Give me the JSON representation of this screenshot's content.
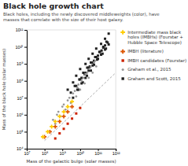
{
  "chart_data": {
    "type": "scatter",
    "title": "Black hole growth chart",
    "subtitle": "Black holes, including the newly discovered middleweights (color), have\nmasses that correlate with the size of their host galaxy.",
    "x_label": "Mass of the galactic bulge (solar masses)",
    "y_label": "Mass of the black hole (solar masses)",
    "log": true,
    "grid": false,
    "legend": "right",
    "xlim": [
      10000000,
      1000000000000
    ],
    "xticks": [
      {
        "value": 10000000,
        "label": "10⁷"
      },
      {
        "value": 100000000,
        "label": "10⁸"
      },
      {
        "value": 1000000000,
        "label": "10⁹"
      },
      {
        "value": 10000000000,
        "label": "10¹⁰"
      },
      {
        "value": 100000000000,
        "label": "10¹¹"
      },
      {
        "value": 1000000000000,
        "label": "10¹²"
      }
    ],
    "ylim": [
      10000,
      100000000000
    ],
    "yticks": [
      {
        "value": 10000,
        "label": "10⁴"
      },
      {
        "value": 100000,
        "label": "10⁵"
      },
      {
        "value": 1000000,
        "label": "10⁶"
      },
      {
        "value": 10000000,
        "label": "10⁷"
      },
      {
        "value": 100000000,
        "label": "10⁸"
      },
      {
        "value": 1000000000,
        "label": "10⁹"
      },
      {
        "value": 10000000000,
        "label": "10¹⁰"
      },
      {
        "value": 100000000000,
        "label": "10¹¹"
      }
    ],
    "series": [
      {
        "name": "Intermediate mass black\nholes (IMBHs) (Fourstar +\nHubble Space Telescope)",
        "color": "#ffcc00",
        "marker": "plus",
        "x": [
          80000000.0,
          150000000.0,
          250000000.0,
          400000000.0,
          700000000.0,
          1200000000.0,
          2000000000.0,
          3500000000.0
        ],
        "values": [
          50000.0,
          100000.0,
          200000.0,
          400000.0,
          800000.0,
          1500000.0,
          3000000.0,
          6000000.0
        ]
      },
      {
        "name": "IMBH (literature)",
        "color": "#dd5500",
        "marker": "plus",
        "x": [
          100000000.0,
          200000000.0,
          400000000.0,
          700000000.0,
          1200000000.0,
          2000000000.0,
          3500000000.0
        ],
        "values": [
          50000.0,
          100000.0,
          200000.0,
          400000.0,
          800000.0,
          1500000.0,
          3000000.0
        ]
      },
      {
        "name": "IMBH candidates (Fourstar)",
        "color": "#cc2200",
        "marker": "square",
        "x": [
          400000000.0,
          700000000.0,
          1200000000.0,
          2000000000.0,
          3500000000.0,
          6000000000.0,
          10000000000.0
        ],
        "values": [
          40000.0,
          80000.0,
          150000.0,
          300000.0,
          600000.0,
          1200000.0,
          2500000.0
        ]
      },
      {
        "name": "Graham et al., 2015",
        "color": "#999999",
        "marker": "point",
        "x": [
          300000000.0,
          600000000.0,
          1200000000.0,
          2500000000.0,
          5000000000.0,
          8000000000.0,
          15000000000.0,
          25000000000.0,
          40000000000.0,
          70000000000.0,
          400000000.0,
          800000000.0,
          1500000000.0,
          3000000000.0,
          6000000000.0,
          10000000000.0,
          18000000000.0,
          30000000000.0,
          50000000000.0,
          80000000000.0,
          500000000.0,
          1000000000.0,
          2000000000.0,
          4000000000.0,
          7000000000.0,
          12000000000.0,
          20000000000.0,
          35000000000.0,
          60000000000.0
        ],
        "values": [
          500000.0,
          1500000.0,
          4000000.0,
          10000000.0,
          25000000.0,
          60000000.0,
          150000000.0,
          300000000.0,
          700000000.0,
          1500000000.0,
          300000.0,
          800000.0,
          2000000.0,
          5000000.0,
          12000000.0,
          30000000.0,
          70000000.0,
          150000000.0,
          300000000.0,
          700000000.0,
          1000000.0,
          3000000.0,
          7000000.0,
          18000000.0,
          40000000.0,
          100000000.0,
          250000000.0,
          500000000.0,
          1200000000.0
        ]
      },
      {
        "name": "Graham and Scott, 2015",
        "color": "#222222",
        "marker": "square",
        "x": [
          2000000000.0,
          4000000000.0,
          6000000000.0,
          10000000000.0,
          20000000000.0,
          30000000000.0,
          50000000000.0,
          80000000000.0,
          150000000000.0,
          250000000000.0,
          400000000000.0,
          3000000000.0,
          5000000000.0,
          9000000000.0,
          15000000000.0,
          25000000000.0,
          40000000000.0,
          70000000000.0,
          120000000000.0,
          200000000000.0,
          350000000000.0,
          4000000000.0,
          7000000000.0,
          12000000000.0,
          20000000000.0,
          30000000000.0,
          50000000000.0,
          90000000000.0,
          150000000000.0,
          250000000000.0,
          400000000000.0,
          6000000000.0,
          10000000000.0,
          18000000000.0,
          30000000000.0,
          50000000000.0,
          80000000000.0,
          130000000000.0,
          200000000000.0,
          300000000000.0,
          8000000000.0,
          14000000000.0,
          24000000000.0,
          40000000000.0,
          60000000000.0,
          100000000000.0,
          180000000000.0,
          280000000000.0,
          12000000000.0,
          20000000000.0,
          35000000000.0,
          60000000000.0,
          100000000000.0,
          160000000000.0,
          250000000000.0
        ],
        "values": [
          30000000.0,
          80000000.0,
          200000000.0,
          500000000.0,
          1000000000.0,
          2000000000.0,
          4000000000.0,
          8000000000.0,
          15000000000.0,
          30000000000.0,
          60000000000.0,
          20000000.0,
          50000000.0,
          120000000.0,
          300000000.0,
          600000000.0,
          1200000000.0,
          2500000000.0,
          5000000000.0,
          9000000000.0,
          18000000000.0,
          10000000.0,
          30000000.0,
          70000000.0,
          150000000.0,
          400000000.0,
          800000000.0,
          1800000000.0,
          3500000000.0,
          7000000000.0,
          14000000000.0,
          50000000.0,
          120000000.0,
          250000000.0,
          600000000.0,
          1200000000.0,
          2500000000.0,
          5000000000.0,
          10000000000.0,
          20000000000.0,
          30000000.0,
          80000000.0,
          200000000.0,
          400000000.0,
          900000000.0,
          2000000000.0,
          4000000000.0,
          8000000000.0,
          150000000.0,
          300000000.0,
          700000000.0,
          1500000000.0,
          3000000000.0,
          6000000000.0,
          12000000000.0
        ]
      },
      {
        "type": "line",
        "line_style": "dashed",
        "color": "#999999",
        "x": [
          100000000.0,
          1000000000000.0
        ],
        "values": [
          30000.0,
          300000000.0
        ]
      }
    ]
  }
}
